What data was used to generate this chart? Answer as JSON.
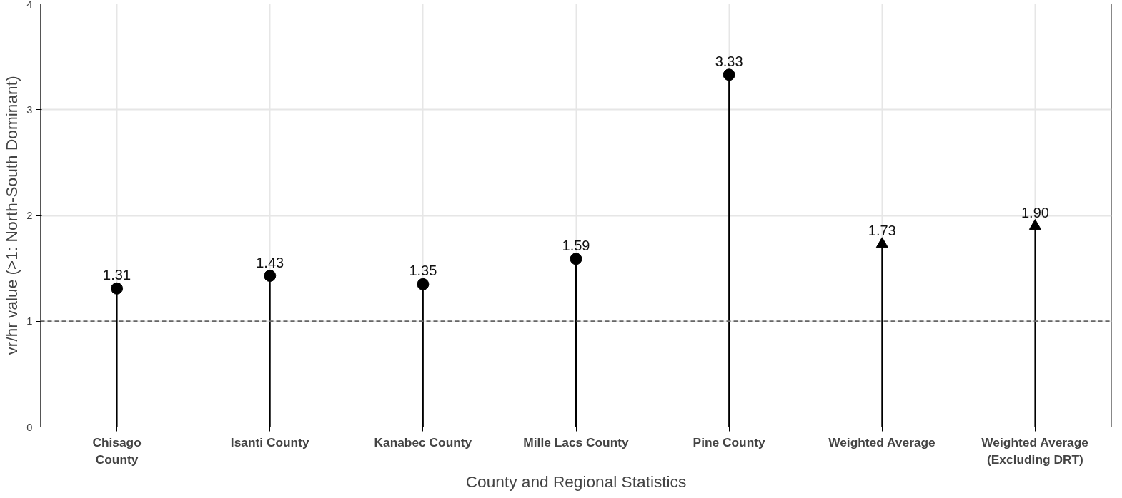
{
  "chart_data": {
    "type": "lollipop",
    "xlabel": "County and Regional Statistics",
    "ylabel": "vr/hr value (>1: North-South Dominant)",
    "categories": [
      "Chisago\nCounty",
      "Isanti County",
      "Kanabec County",
      "Mille Lacs County",
      "Pine County",
      "Weighted Average",
      "Weighted Average\n(Excluding DRT)"
    ],
    "series": [
      {
        "color": "#000000",
        "marker": "circle",
        "values": [
          1.31,
          1.43,
          1.35,
          1.59,
          3.33,
          null,
          null
        ]
      },
      {
        "color": "#000000",
        "marker": "triangle",
        "values": [
          null,
          null,
          null,
          null,
          null,
          1.73,
          1.9
        ]
      }
    ],
    "value_labels": [
      "1.31",
      "1.43",
      "1.35",
      "1.59",
      "3.33",
      "1.73",
      "1.90"
    ],
    "ylim": [
      0,
      4
    ],
    "yticks": [
      0,
      1,
      2,
      3,
      4
    ],
    "grid": true,
    "ref_lines": [
      {
        "axis": "y",
        "value": 1,
        "color": "#666666",
        "line_style": "dashed"
      }
    ]
  }
}
